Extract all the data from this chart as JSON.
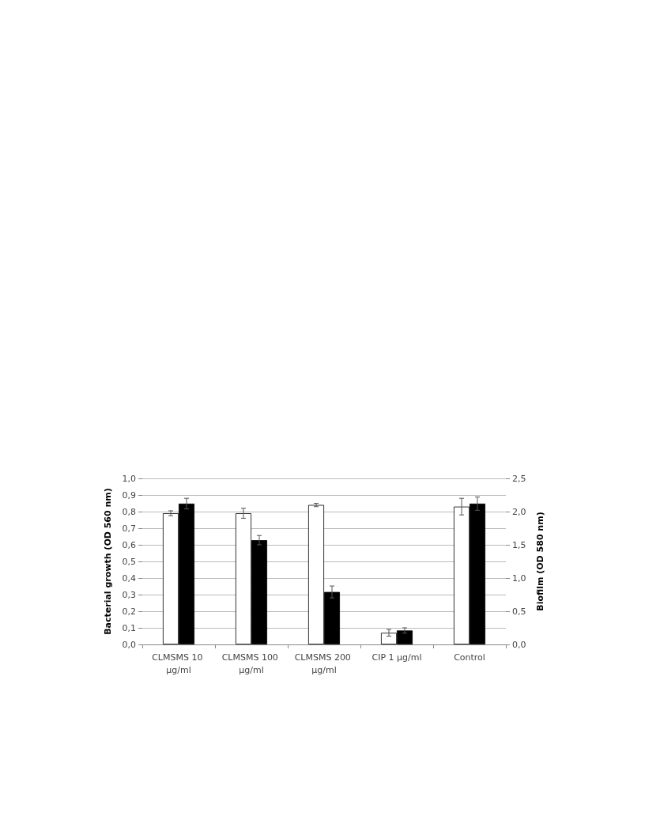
{
  "chart_data": {
    "type": "bar",
    "ylabel": "Bacterial growth (OD 560 nm)",
    "y2label": "Biofilm (OD 580 nm)",
    "categories": [
      "CLMSMS 10 µg/ml",
      "CLMSMS 100 µg/ml",
      "CLMSMS 200 µg/ml",
      "CIP 1 µg/ml",
      "Control"
    ],
    "series": [
      {
        "color": "#ffffff",
        "values": [
          0.79,
          0.79,
          0.84,
          0.07,
          0.83
        ],
        "errors": [
          0.015,
          0.03,
          0.01,
          0.02,
          0.05
        ]
      },
      {
        "color": "#000000",
        "axis": "y2",
        "values": [
          2.12,
          1.57,
          0.79,
          0.21,
          2.12
        ],
        "errors": [
          0.08,
          0.07,
          0.09,
          0.04,
          0.1
        ]
      }
    ],
    "ylim": [
      0,
      1
    ],
    "yticks": [
      {
        "value": 0,
        "label": "0,0"
      },
      {
        "value": 0.1,
        "label": "0,1"
      },
      {
        "value": 0.2,
        "label": "0,2"
      },
      {
        "value": 0.3,
        "label": "0,3"
      },
      {
        "value": 0.4,
        "label": "0,4"
      },
      {
        "value": 0.5,
        "label": "0,5"
      },
      {
        "value": 0.6,
        "label": "0,6"
      },
      {
        "value": 0.7,
        "label": "0,7"
      },
      {
        "value": 0.8,
        "label": "0,8"
      },
      {
        "value": 0.9,
        "label": "0,9"
      },
      {
        "value": 1,
        "label": "1,0"
      }
    ],
    "y2lim": [
      0,
      2.5
    ],
    "y2ticks": [
      {
        "value": 0,
        "label": "0,0"
      },
      {
        "value": 0.5,
        "label": "0,5"
      },
      {
        "value": 1,
        "label": "1,0"
      },
      {
        "value": 1.5,
        "label": "1,5"
      },
      {
        "value": 2,
        "label": "2,0"
      },
      {
        "value": 2.5,
        "label": "2,5"
      }
    ],
    "grid": "y"
  }
}
